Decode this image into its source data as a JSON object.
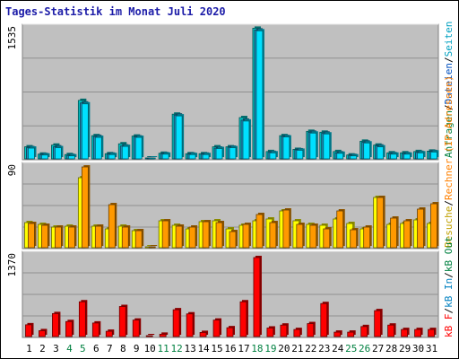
{
  "title": "Tages-Statistik im Monat Juli 2020",
  "colors": {
    "panel_bg": "#c0c0c0",
    "hits": "#00c8c8",
    "files": "#00e0ff",
    "pages": "#1f8fbf",
    "visits": "#ffff00",
    "sites": "#ff9900",
    "kbytes": "#ff0000",
    "weekend_label": "#008040",
    "weekday_label": "#000000"
  },
  "legend_top": [
    {
      "label": "Anfragen",
      "color": "#008040"
    },
    {
      "label": "/",
      "color": "#000000"
    },
    {
      "label": "Dateien",
      "color": "#0050c0"
    },
    {
      "label": "/",
      "color": "#000000"
    },
    {
      "label": "Seiten",
      "color": "#00a0c0"
    }
  ],
  "legend_mid": [
    {
      "label": "Besuche",
      "color": "#c0a000"
    },
    {
      "label": "/",
      "color": "#000000"
    },
    {
      "label": "Rechner (IP-Adressen)",
      "color": "#ff8000"
    }
  ],
  "legend_bottom": [
    {
      "label": "kB F",
      "color": "#ff0000"
    },
    {
      "label": "/",
      "color": "#000000"
    },
    {
      "label": "kB In",
      "color": "#0080c0"
    },
    {
      "label": "/",
      "color": "#000000"
    },
    {
      "label": "kB Out",
      "color": "#008040"
    }
  ],
  "chart_data": [
    {
      "type": "bar",
      "name": "hits_files_pages",
      "ymax_label": "1535",
      "ylim": [
        0,
        1535
      ],
      "categories": [
        "1",
        "2",
        "3",
        "4",
        "5",
        "6",
        "7",
        "8",
        "9",
        "10",
        "11",
        "12",
        "13",
        "14",
        "15",
        "16",
        "17",
        "18",
        "19",
        "20",
        "21",
        "22",
        "23",
        "24",
        "25",
        "26",
        "27",
        "28",
        "29",
        "30",
        "31"
      ],
      "weekend": [
        "4",
        "5",
        "11",
        "12",
        "18",
        "19",
        "25",
        "26"
      ],
      "series": [
        {
          "name": "Anfragen",
          "values": [
            140,
            55,
            160,
            50,
            680,
            270,
            60,
            175,
            265,
            10,
            65,
            520,
            60,
            60,
            140,
            140,
            480,
            1520,
            85,
            270,
            110,
            320,
            310,
            85,
            45,
            205,
            160,
            70,
            70,
            85,
            90
          ]
        },
        {
          "name": "Dateien",
          "values": [
            130,
            50,
            140,
            40,
            650,
            260,
            55,
            150,
            255,
            8,
            60,
            510,
            55,
            55,
            125,
            135,
            450,
            1500,
            75,
            260,
            105,
            310,
            300,
            70,
            40,
            195,
            150,
            60,
            60,
            75,
            85
          ]
        },
        {
          "name": "Seiten",
          "values": [
            125,
            45,
            130,
            35,
            640,
            250,
            50,
            145,
            250,
            6,
            55,
            500,
            50,
            50,
            120,
            130,
            440,
            1490,
            70,
            255,
            100,
            300,
            290,
            65,
            35,
            185,
            140,
            55,
            55,
            70,
            80
          ]
        }
      ]
    },
    {
      "type": "bar",
      "name": "visits_sites",
      "ymax_label": "90",
      "ylim": [
        0,
        90
      ],
      "categories": [
        "1",
        "2",
        "3",
        "4",
        "5",
        "6",
        "7",
        "8",
        "9",
        "10",
        "11",
        "12",
        "13",
        "14",
        "15",
        "16",
        "17",
        "18",
        "19",
        "20",
        "21",
        "22",
        "23",
        "24",
        "25",
        "26",
        "27",
        "28",
        "29",
        "30",
        "31"
      ],
      "series": [
        {
          "name": "Besuche",
          "values": [
            28,
            26,
            23,
            24,
            78,
            24,
            21,
            24,
            19,
            1,
            30,
            25,
            21,
            29,
            30,
            21,
            25,
            30,
            32,
            41,
            30,
            26,
            25,
            32,
            27,
            21,
            56,
            26,
            27,
            31,
            27
          ]
        },
        {
          "name": "Rechner",
          "values": [
            27,
            25,
            23,
            23,
            90,
            24,
            48,
            23,
            19,
            1,
            30,
            24,
            23,
            29,
            28,
            18,
            26,
            37,
            28,
            42,
            26,
            25,
            21,
            41,
            20,
            23,
            56,
            33,
            30,
            43,
            49
          ]
        }
      ]
    },
    {
      "type": "bar",
      "name": "kbytes",
      "ymax_label": "1370",
      "ylim": [
        0,
        1370
      ],
      "categories": [
        "1",
        "2",
        "3",
        "4",
        "5",
        "6",
        "7",
        "8",
        "9",
        "10",
        "11",
        "12",
        "13",
        "14",
        "15",
        "16",
        "17",
        "18",
        "19",
        "20",
        "21",
        "22",
        "23",
        "24",
        "25",
        "26",
        "27",
        "28",
        "29",
        "30",
        "31"
      ],
      "series": [
        {
          "name": "kB F",
          "values": [
            200,
            100,
            390,
            255,
            590,
            230,
            90,
            510,
            280,
            6,
            40,
            455,
            385,
            70,
            280,
            150,
            590,
            1340,
            145,
            195,
            120,
            220,
            560,
            75,
            75,
            170,
            440,
            195,
            120,
            120,
            120
          ]
        }
      ]
    }
  ]
}
